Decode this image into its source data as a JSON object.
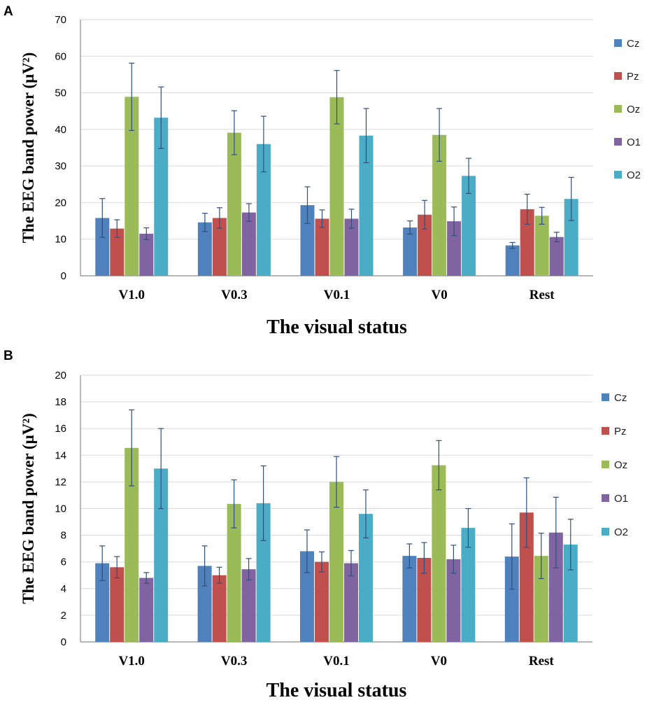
{
  "series_names": [
    "Cz",
    "Pz",
    "Oz",
    "O1",
    "O2"
  ],
  "colors": {
    "Cz": "#4f81bd",
    "Pz": "#c0504d",
    "Oz": "#9bbb59",
    "O1": "#8064a2",
    "O2": "#4bacc6"
  },
  "chart_data": [
    {
      "panel": "A",
      "type": "bar",
      "title": "",
      "ylabel": "The EEG band power (μV²)",
      "xlabel": "The visual status",
      "ylim": [
        0,
        70
      ],
      "yticks": [
        0,
        10,
        20,
        30,
        40,
        50,
        60,
        70
      ],
      "categories": [
        "V1.0",
        "V0.3",
        "V0.1",
        "V0",
        "Rest"
      ],
      "grid": true,
      "legend_position": "right",
      "series": [
        {
          "name": "Cz",
          "values": [
            15.8,
            14.6,
            19.3,
            13.2,
            8.3
          ],
          "errors": [
            5.3,
            2.5,
            5.0,
            1.8,
            0.8
          ]
        },
        {
          "name": "Pz",
          "values": [
            12.9,
            15.8,
            15.6,
            16.7,
            18.2
          ],
          "errors": [
            2.4,
            2.8,
            2.4,
            3.9,
            4.1
          ]
        },
        {
          "name": "Oz",
          "values": [
            48.9,
            39.1,
            48.8,
            38.5,
            16.4
          ],
          "errors": [
            9.2,
            6.0,
            7.3,
            7.2,
            2.3
          ]
        },
        {
          "name": "O1",
          "values": [
            11.5,
            17.3,
            15.6,
            14.9,
            10.6
          ],
          "errors": [
            1.6,
            2.4,
            2.6,
            3.9,
            1.3
          ]
        },
        {
          "name": "O2",
          "values": [
            43.2,
            36.0,
            38.3,
            27.3,
            21.0
          ],
          "errors": [
            8.4,
            7.6,
            7.4,
            4.8,
            5.9
          ]
        }
      ]
    },
    {
      "panel": "B",
      "type": "bar",
      "title": "",
      "ylabel": "The EEG band power (μV²)",
      "xlabel": "The visual status",
      "ylim": [
        0,
        20
      ],
      "yticks": [
        0,
        2,
        4,
        6,
        8,
        10,
        12,
        14,
        16,
        18,
        20
      ],
      "categories": [
        "V1.0",
        "V0.3",
        "V0.1",
        "V0",
        "Rest"
      ],
      "grid": true,
      "legend_position": "right",
      "series": [
        {
          "name": "Cz",
          "values": [
            5.9,
            5.7,
            6.8,
            6.45,
            6.4
          ],
          "errors": [
            1.3,
            1.5,
            1.6,
            0.9,
            2.45
          ]
        },
        {
          "name": "Pz",
          "values": [
            5.6,
            5.0,
            6.0,
            6.3,
            9.7
          ],
          "errors": [
            0.8,
            0.6,
            0.75,
            1.15,
            2.6
          ]
        },
        {
          "name": "Oz",
          "values": [
            14.55,
            10.35,
            12.0,
            13.25,
            6.45
          ],
          "errors": [
            2.85,
            1.8,
            1.9,
            1.85,
            1.7
          ]
        },
        {
          "name": "O1",
          "values": [
            4.8,
            5.45,
            5.9,
            6.2,
            8.2
          ],
          "errors": [
            0.4,
            0.8,
            0.95,
            1.05,
            2.65
          ]
        },
        {
          "name": "O2",
          "values": [
            13.0,
            10.4,
            9.6,
            8.55,
            7.3
          ],
          "errors": [
            3.0,
            2.8,
            1.8,
            1.45,
            1.9
          ]
        }
      ]
    }
  ]
}
